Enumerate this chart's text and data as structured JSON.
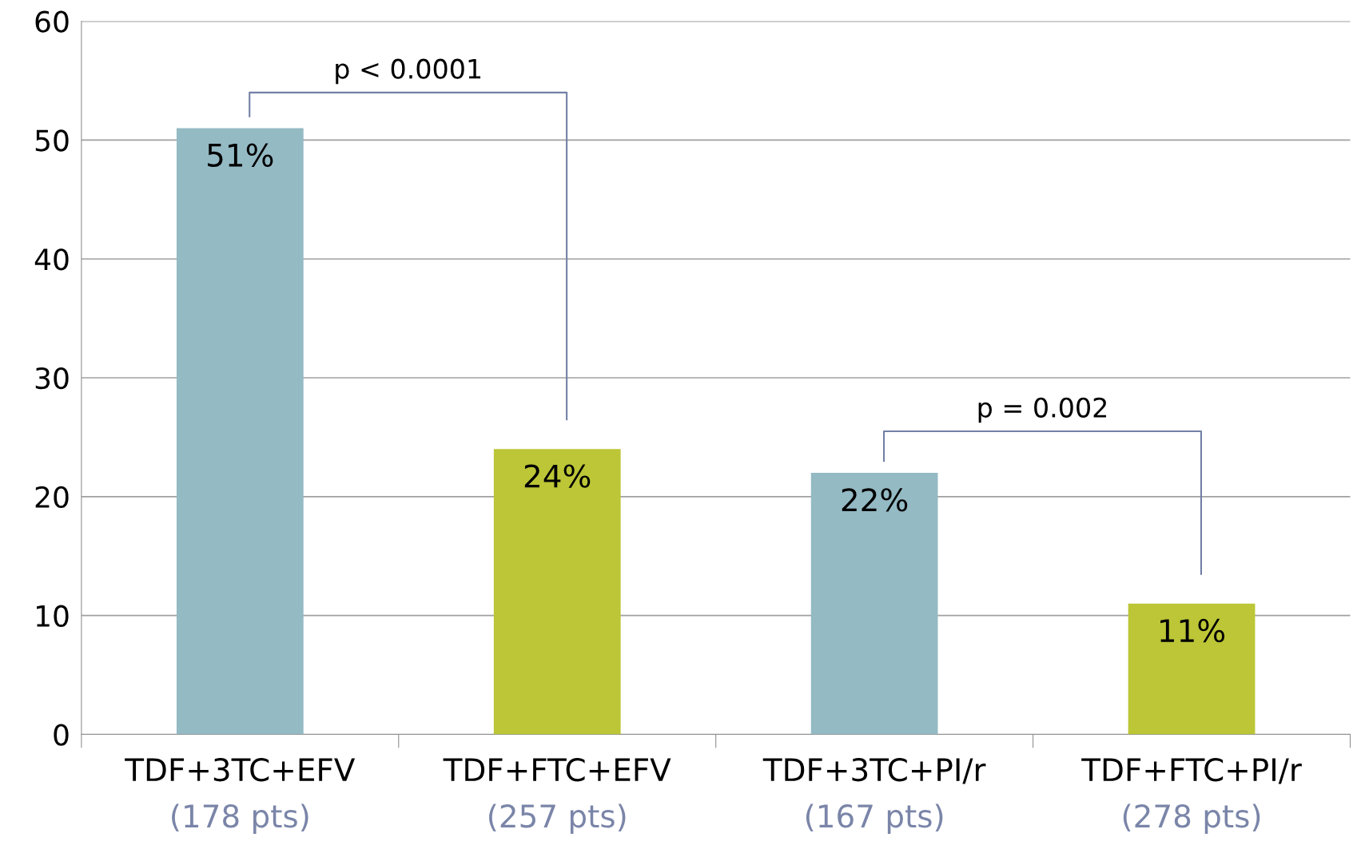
{
  "chart_data": {
    "type": "bar",
    "categories": [
      "TDF+3TC+EFV\n(178 pts)",
      "TDF+FTC+EFV\n(257 pts)",
      "TDF+3TC+PI/r\n(167 pts)",
      "TDF+FTC+PI/r\n(278 pts)"
    ],
    "values": [
      51,
      24,
      22,
      11
    ],
    "colors": [
      "#94bac4",
      "#bcc636",
      "#94bac4",
      "#bcc636"
    ],
    "value_labels": [
      "51%",
      "24%",
      "22%",
      "11%"
    ],
    "ylim": [
      0,
      60
    ],
    "yticks": [
      0,
      10,
      20,
      30,
      40,
      50,
      60
    ],
    "grid": "y",
    "annotations": [
      "p < 0.0001",
      "p = 0.002"
    ]
  }
}
